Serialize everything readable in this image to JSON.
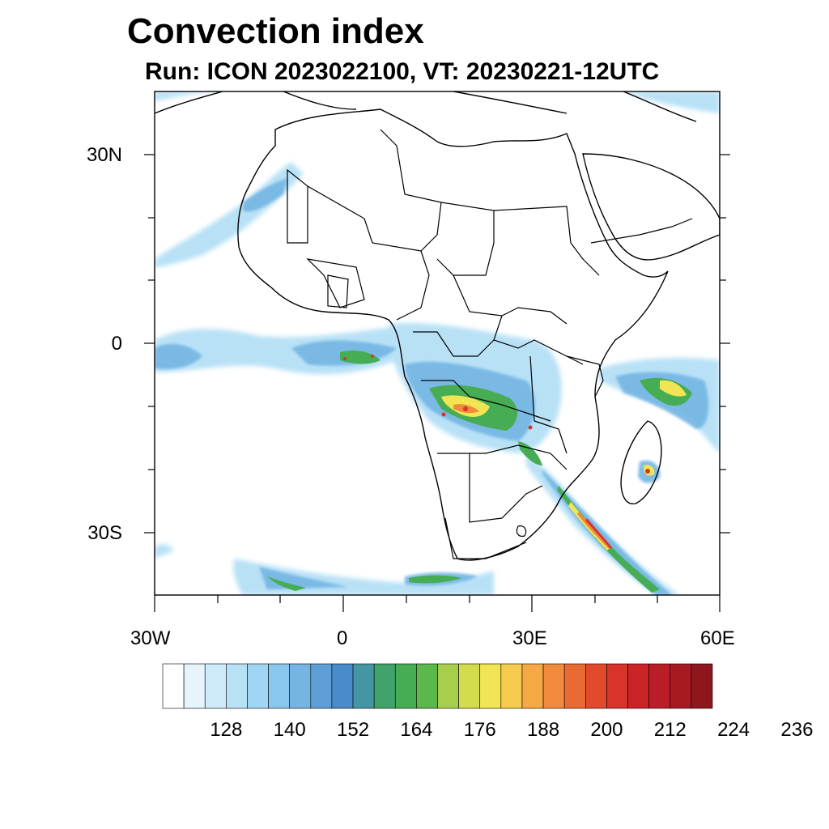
{
  "header": {
    "title": "Convection index",
    "subtitle": "Run: ICON 2023022100,  VT: 20230221-12UTC"
  },
  "axes": {
    "lat_labels": [
      "30N",
      "0",
      "30S"
    ],
    "lon_labels": [
      "30W",
      "0",
      "30E",
      "60E"
    ]
  },
  "colorbar": {
    "labels": [
      "128",
      "140",
      "152",
      "164",
      "176",
      "188",
      "200",
      "212",
      "224",
      "236"
    ],
    "colors": [
      "#ffffff",
      "#e6f4fc",
      "#cfeaf9",
      "#b8e1f6",
      "#a0d6f3",
      "#8ac7ee",
      "#75b5e4",
      "#5f9fd8",
      "#4a8bc9",
      "#4596a4",
      "#42a36a",
      "#46ad55",
      "#5bb84b",
      "#a7cf4d",
      "#d2dc4d",
      "#f1e554",
      "#f6cb4e",
      "#f6a845",
      "#f18a3c",
      "#ea6a33",
      "#e24a2c",
      "#d83429",
      "#cb2427",
      "#bb1d26",
      "#a81a22",
      "#8e171d"
    ]
  },
  "map": {
    "projection": "lat-lon",
    "lon_range": [
      -30,
      60
    ],
    "lat_range": [
      -40,
      40
    ],
    "contour_lines": "coastlines and country borders"
  }
}
